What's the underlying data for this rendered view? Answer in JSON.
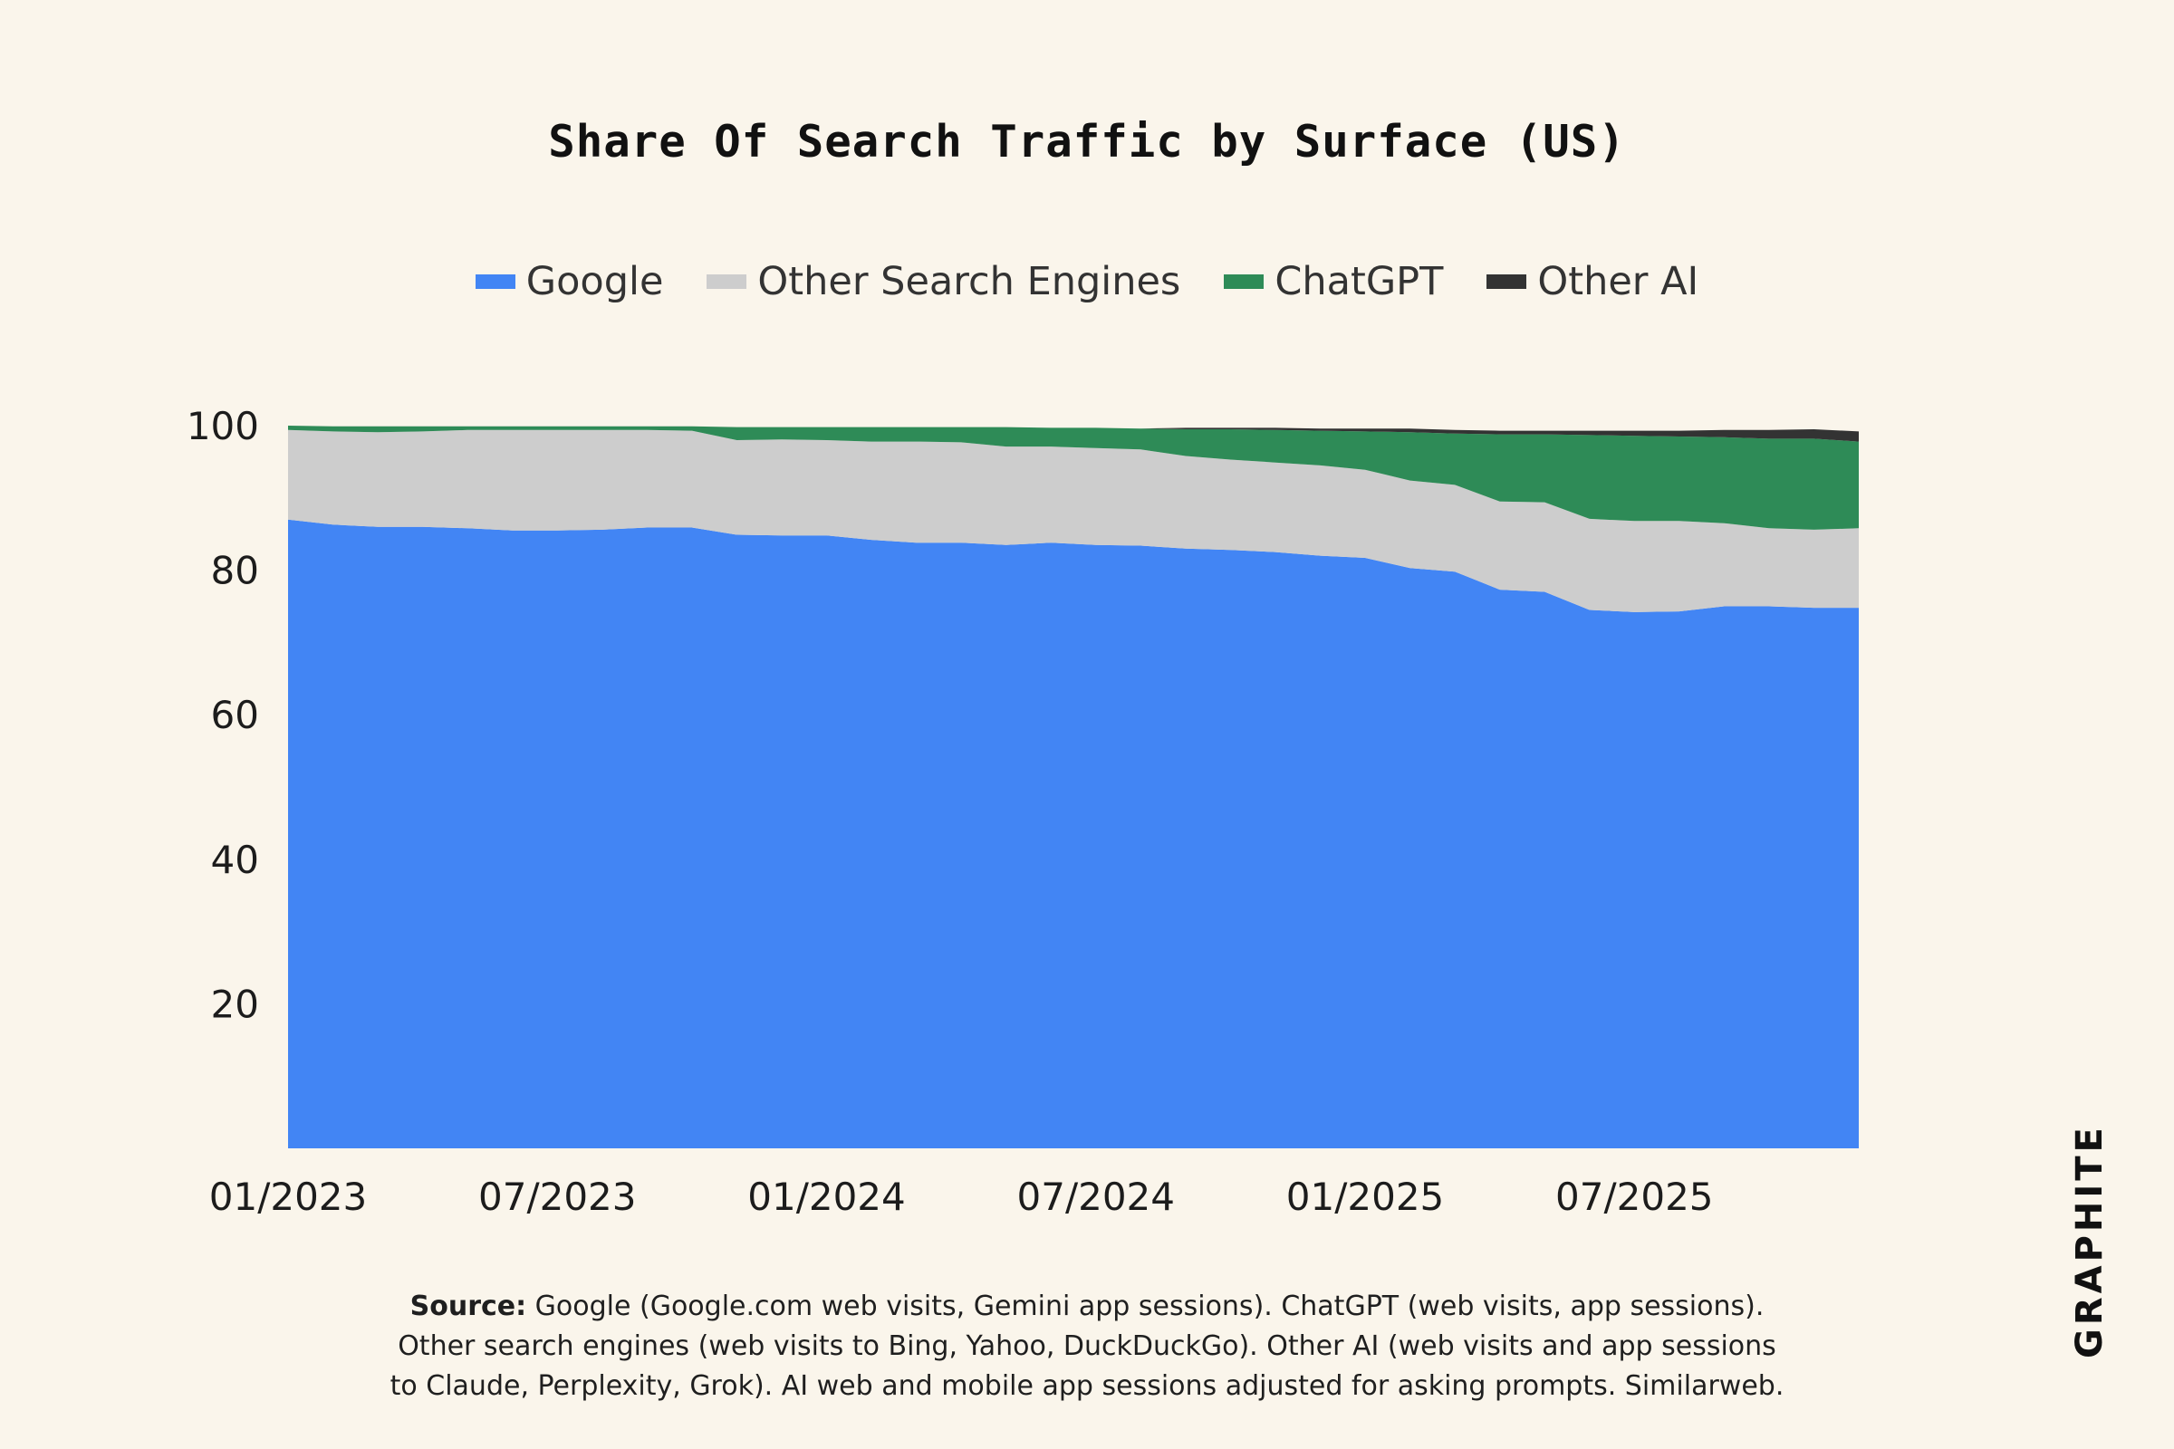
{
  "chart_data": {
    "type": "area",
    "title": "Share Of Search Traffic by Surface (US)",
    "stacked": true,
    "x": [
      "01/2023",
      "02/2023",
      "03/2023",
      "04/2023",
      "05/2023",
      "06/2023",
      "07/2023",
      "08/2023",
      "09/2023",
      "10/2023",
      "11/2023",
      "12/2023",
      "01/2024",
      "02/2024",
      "03/2024",
      "04/2024",
      "05/2024",
      "06/2024",
      "07/2024",
      "08/2024",
      "09/2024",
      "10/2024",
      "11/2024",
      "12/2024",
      "01/2025",
      "02/2025",
      "03/2025",
      "04/2025",
      "05/2025",
      "06/2025",
      "07/2025",
      "08/2025",
      "09/2025",
      "10/2025",
      "11/2025",
      "12/2025"
    ],
    "x_ticks": [
      "01/2023",
      "07/2023",
      "01/2024",
      "07/2024",
      "01/2025",
      "07/2025"
    ],
    "y_ticks": [
      "100",
      "80",
      "60",
      "40",
      "20"
    ],
    "ylim": [
      0,
      100
    ],
    "grid": false,
    "legend_position": "top-center",
    "series": [
      {
        "name": "Google",
        "color": "#4285f4",
        "values": [
          87.0,
          86.3,
          86.0,
          86.0,
          85.8,
          85.5,
          85.5,
          85.6,
          85.9,
          85.9,
          84.9,
          84.8,
          84.8,
          84.2,
          83.8,
          83.8,
          83.5,
          83.8,
          83.5,
          83.4,
          83.0,
          82.8,
          82.5,
          82.0,
          81.7,
          80.3,
          79.8,
          77.3,
          77.0,
          74.5,
          74.2,
          74.3,
          75.0,
          75.0,
          74.8,
          74.8
        ]
      },
      {
        "name": "Other Search Engines",
        "color": "#cdcdcd",
        "values": [
          12.4,
          12.9,
          13.1,
          13.2,
          13.6,
          13.9,
          13.9,
          13.8,
          13.5,
          13.4,
          13.1,
          13.3,
          13.2,
          13.6,
          14.0,
          13.9,
          13.6,
          13.3,
          13.4,
          13.3,
          12.8,
          12.5,
          12.4,
          12.5,
          12.2,
          12.1,
          12.0,
          12.2,
          12.4,
          12.6,
          12.6,
          12.5,
          11.5,
          10.8,
          10.8,
          11.0
        ]
      },
      {
        "name": "ChatGPT",
        "color": "#2e8b57",
        "values": [
          0.6,
          0.7,
          0.8,
          0.7,
          0.5,
          0.5,
          0.5,
          0.5,
          0.5,
          0.6,
          1.8,
          1.7,
          1.8,
          2.0,
          2.0,
          2.1,
          2.7,
          2.6,
          2.8,
          2.9,
          3.7,
          4.2,
          4.5,
          4.8,
          5.3,
          6.7,
          7.1,
          9.3,
          9.4,
          11.6,
          11.8,
          11.7,
          11.9,
          12.4,
          12.6,
          12.0
        ]
      },
      {
        "name": "Other AI",
        "color": "#333333",
        "values": [
          0,
          0,
          0,
          0,
          0,
          0,
          0,
          0,
          0,
          0,
          0,
          0,
          0,
          0,
          0,
          0,
          0,
          0,
          0,
          0,
          0.2,
          0.2,
          0.3,
          0.3,
          0.4,
          0.5,
          0.5,
          0.5,
          0.5,
          0.6,
          0.7,
          0.8,
          1.0,
          1.2,
          1.3,
          1.4
        ]
      }
    ]
  },
  "source": {
    "label": "Source:",
    "line1": "Google (Google.com web visits, Gemini app sessions). ChatGPT (web visits, app sessions).",
    "line2": "Other search engines (web visits to Bing, Yahoo, DuckDuckGo). Other AI (web visits and app sessions",
    "line3": "to Claude, Perplexity, Grok). AI web and mobile app sessions adjusted for asking prompts. Similarweb."
  },
  "logo": {
    "text": "GRAPHITE"
  }
}
